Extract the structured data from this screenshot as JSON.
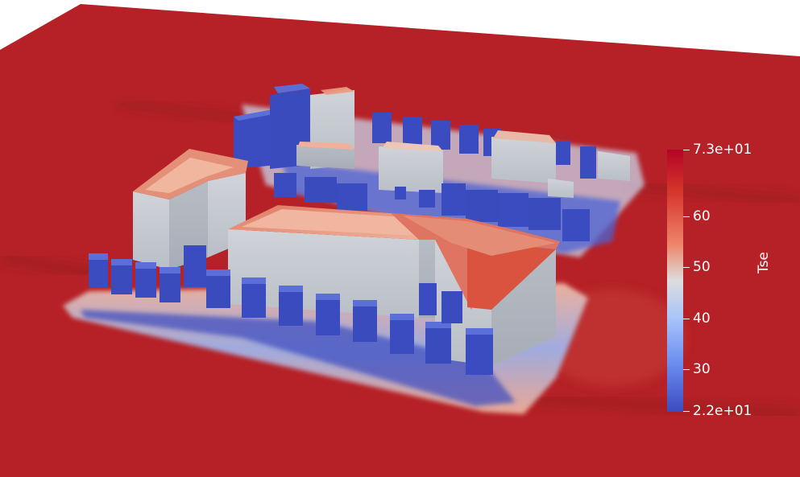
{
  "scene": {
    "field_name": "Tse",
    "colors": {
      "hot": "#b40426",
      "warm": "#ee8468",
      "neutral": "#dddddd",
      "cool": "#a9c5f9",
      "cold": "#3b4cc0",
      "building_wall": "#c5cad0"
    }
  },
  "colorbar": {
    "title": "Tse",
    "max_label": "7.3e+01",
    "min_label": "2.2e+01",
    "min_value": 22,
    "max_value": 73,
    "ticks": [
      {
        "label": "60",
        "value": 60
      },
      {
        "label": "50",
        "value": 50
      },
      {
        "label": "40",
        "value": 40
      },
      {
        "label": "30",
        "value": 30
      }
    ]
  }
}
